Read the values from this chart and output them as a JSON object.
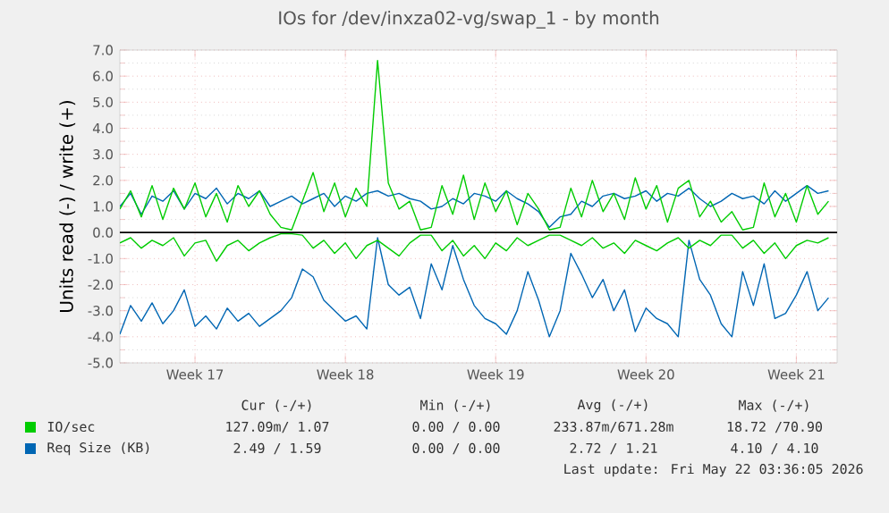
{
  "chart_data": {
    "type": "line",
    "title": "IOs for /dev/inxza02-vg/swap_1 - by month",
    "ylabel": "Units read (-) / write (+)",
    "categories": [
      null,
      null,
      null,
      null,
      null,
      null,
      null,
      "Week 17",
      null,
      null,
      null,
      null,
      null,
      null,
      null,
      null,
      null,
      null,
      null,
      null,
      null,
      "Week 18",
      null,
      null,
      null,
      null,
      null,
      null,
      null,
      null,
      null,
      null,
      null,
      null,
      null,
      "Week 19",
      null,
      null,
      null,
      null,
      null,
      null,
      null,
      null,
      null,
      null,
      null,
      null,
      null,
      "Week 20",
      null,
      null,
      null,
      null,
      null,
      null,
      null,
      null,
      null,
      null,
      null,
      null,
      null,
      "Week 21",
      null,
      null,
      null
    ],
    "ylim": [
      -5,
      7
    ],
    "yticks": [
      {
        "value": -5,
        "label": "-5.0"
      },
      {
        "value": -4,
        "label": "-4.0"
      },
      {
        "value": -3,
        "label": "-3.0"
      },
      {
        "value": -2,
        "label": "-2.0"
      },
      {
        "value": -1,
        "label": "-1.0"
      },
      {
        "value": 0,
        "label": "0.0"
      },
      {
        "value": 1,
        "label": "1.0"
      },
      {
        "value": 2,
        "label": "2.0"
      },
      {
        "value": 3,
        "label": "3.0"
      },
      {
        "value": 4,
        "label": "4.0"
      },
      {
        "value": 5,
        "label": "5.0"
      },
      {
        "value": 6,
        "label": "6.0"
      },
      {
        "value": 7,
        "label": "7.0"
      }
    ],
    "grid": true,
    "marker": "none",
    "line_style": "solid",
    "legend": "bottom",
    "ref_lines": [
      {
        "axis": "y",
        "value": 0,
        "color": "#000000"
      }
    ],
    "series": [
      {
        "color": "#0066b3",
        "values": [
          -3.9,
          -2.8,
          -3.4,
          -2.7,
          -3.5,
          -3.0,
          -2.2,
          -3.6,
          -3.2,
          -3.7,
          -2.9,
          -3.4,
          -3.1,
          -3.6,
          -3.3,
          -3.0,
          -2.5,
          -1.4,
          -1.7,
          -2.6,
          -3.0,
          -3.4,
          -3.2,
          -3.7,
          -0.2,
          -2.0,
          -2.4,
          -2.1,
          -3.3,
          -1.2,
          -2.2,
          -0.5,
          -1.8,
          -2.8,
          -3.3,
          -3.5,
          -3.9,
          -3.0,
          -1.5,
          -2.6,
          -4.0,
          -3.0,
          -0.8,
          -1.6,
          -2.5,
          -1.8,
          -3.0,
          -2.2,
          -3.8,
          -2.9,
          -3.3,
          -3.5,
          -4.0,
          -0.3,
          -1.8,
          -2.4,
          -3.5,
          -4.0,
          -1.5,
          -2.8,
          -1.2,
          -3.3,
          -3.1,
          -2.4,
          -1.5,
          -3.0,
          -2.5
        ]
      },
      {
        "name": "Req Size (KB)",
        "color": "#0066b3",
        "values": [
          1.0,
          1.5,
          0.7,
          1.4,
          1.2,
          1.6,
          0.9,
          1.5,
          1.3,
          1.7,
          1.1,
          1.5,
          1.3,
          1.6,
          1.0,
          1.2,
          1.4,
          1.1,
          1.3,
          1.5,
          1.0,
          1.4,
          1.2,
          1.5,
          1.6,
          1.4,
          1.5,
          1.3,
          1.2,
          0.9,
          1.0,
          1.3,
          1.1,
          1.5,
          1.4,
          1.2,
          1.6,
          1.3,
          1.1,
          0.8,
          0.2,
          0.6,
          0.7,
          1.2,
          1.0,
          1.4,
          1.5,
          1.3,
          1.4,
          1.6,
          1.2,
          1.5,
          1.4,
          1.7,
          1.3,
          1.0,
          1.2,
          1.5,
          1.3,
          1.4,
          1.1,
          1.6,
          1.2,
          1.5,
          1.8,
          1.5,
          1.6
        ]
      },
      {
        "color": "#00cc00",
        "values": [
          -0.4,
          -0.2,
          -0.6,
          -0.3,
          -0.5,
          -0.2,
          -0.9,
          -0.4,
          -0.3,
          -1.1,
          -0.5,
          -0.3,
          -0.7,
          -0.4,
          -0.2,
          -0.05,
          -0.05,
          -0.1,
          -0.6,
          -0.3,
          -0.8,
          -0.4,
          -1.0,
          -0.5,
          -0.3,
          -0.6,
          -0.9,
          -0.4,
          -0.1,
          -0.1,
          -0.7,
          -0.3,
          -0.9,
          -0.5,
          -1.0,
          -0.4,
          -0.7,
          -0.2,
          -0.5,
          -0.3,
          -0.1,
          -0.1,
          -0.3,
          -0.5,
          -0.2,
          -0.6,
          -0.4,
          -0.8,
          -0.3,
          -0.5,
          -0.7,
          -0.4,
          -0.2,
          -0.6,
          -0.3,
          -0.5,
          -0.1,
          -0.1,
          -0.6,
          -0.3,
          -0.8,
          -0.4,
          -1.0,
          -0.5,
          -0.3,
          -0.4,
          -0.2
        ]
      },
      {
        "name": "IO/sec",
        "color": "#00cc00",
        "values": [
          0.9,
          1.6,
          0.6,
          1.8,
          0.5,
          1.7,
          0.9,
          1.9,
          0.6,
          1.5,
          0.4,
          1.8,
          1.0,
          1.6,
          0.7,
          0.2,
          0.1,
          1.2,
          2.3,
          0.8,
          1.9,
          0.6,
          1.7,
          1.0,
          6.6,
          1.9,
          0.9,
          1.2,
          0.1,
          0.2,
          1.8,
          0.7,
          2.2,
          0.5,
          1.9,
          0.8,
          1.6,
          0.3,
          1.5,
          0.9,
          0.1,
          0.2,
          1.7,
          0.6,
          2.0,
          0.8,
          1.5,
          0.5,
          2.1,
          0.9,
          1.8,
          0.4,
          1.7,
          2.0,
          0.6,
          1.2,
          0.4,
          0.8,
          0.1,
          0.2,
          1.9,
          0.6,
          1.5,
          0.4,
          1.8,
          0.7,
          1.2
        ]
      }
    ],
    "annotations": [
      "Cur (-/+)",
      "Min (-/+)",
      "Avg (-/+)",
      "Max (-/+)",
      "127.09m/ 1.07",
      "0.00 / 0.00",
      "233.87m/671.28m",
      "18.72 /70.90",
      "2.49 / 1.59",
      "0.00 / 0.00",
      "2.72 / 1.21",
      "4.10 / 4.10",
      "Last update: Fri May 22 03:36:05 2026"
    ]
  }
}
